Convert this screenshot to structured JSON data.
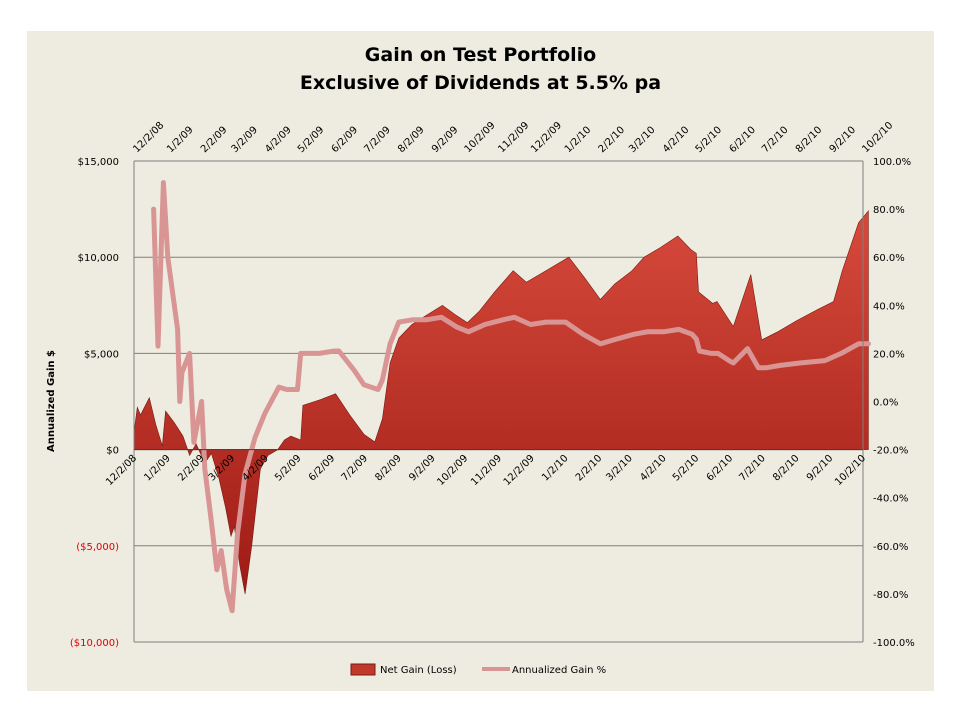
{
  "chart_data": {
    "type": "area+line",
    "title_line1": "Gain on Test Portfolio",
    "title_line2": "Exclusive of Dividends at 5.5% pa",
    "ylabel_left": "Annualized Gain $",
    "ylim_left": [
      -10000,
      15000
    ],
    "ylim_right": [
      -100,
      100
    ],
    "left_ticks": [
      {
        "value": 15000,
        "label": "$15,000",
        "negative": false
      },
      {
        "value": 10000,
        "label": "$10,000",
        "negative": false
      },
      {
        "value": 5000,
        "label": "$5,000",
        "negative": false
      },
      {
        "value": 0,
        "label": "$0",
        "negative": false
      },
      {
        "value": -5000,
        "label": "($5,000)",
        "negative": true
      },
      {
        "value": -10000,
        "label": "($10,000)",
        "negative": true
      }
    ],
    "right_ticks": [
      {
        "value": 100,
        "label": "100.0%"
      },
      {
        "value": 80,
        "label": "80.0%"
      },
      {
        "value": 60,
        "label": "60.0%"
      },
      {
        "value": 40,
        "label": "40.0%"
      },
      {
        "value": 20,
        "label": "20.0%"
      },
      {
        "value": 0,
        "label": "0.0%"
      },
      {
        "value": -20,
        "label": "-20.0%"
      },
      {
        "value": -40,
        "label": "-40.0%"
      },
      {
        "value": -60,
        "label": "-60.0%"
      },
      {
        "value": -80,
        "label": "-80.0%"
      },
      {
        "value": -100,
        "label": "-100.0%"
      }
    ],
    "x_ticks": [
      "12/2/08",
      "1/2/09",
      "2/2/09",
      "3/2/09",
      "4/2/09",
      "5/2/09",
      "6/2/09",
      "7/2/09",
      "8/2/09",
      "9/2/09",
      "10/2/09",
      "11/2/09",
      "12/2/09",
      "1/2/10",
      "2/2/10",
      "3/2/10",
      "4/2/10",
      "5/2/10",
      "6/2/10",
      "7/2/10",
      "8/2/10",
      "9/2/10",
      "10/2/10"
    ],
    "x_range": [
      "12/2/08",
      "10/2/10"
    ],
    "series": [
      {
        "name": "Net Gain (Loss)",
        "type": "area",
        "axis": "left",
        "color": "#c0392b",
        "points": [
          [
            "12/2/08",
            900
          ],
          [
            "12/5/08",
            2200
          ],
          [
            "12/8/08",
            1800
          ],
          [
            "12/16/08",
            2700
          ],
          [
            "12/22/08",
            1300
          ],
          [
            "12/28/08",
            200
          ],
          [
            "12/31/08",
            2000
          ],
          [
            "1/8/09",
            1400
          ],
          [
            "1/16/09",
            700
          ],
          [
            "1/22/09",
            -300
          ],
          [
            "1/28/09",
            300
          ],
          [
            "2/5/09",
            -700
          ],
          [
            "2/11/09",
            -200
          ],
          [
            "2/18/09",
            -1500
          ],
          [
            "2/24/09",
            -3000
          ],
          [
            "3/1/09",
            -4500
          ],
          [
            "3/4/09",
            -4000
          ],
          [
            "3/9/09",
            -6000
          ],
          [
            "3/14/09",
            -7500
          ],
          [
            "3/20/09",
            -5000
          ],
          [
            "3/28/09",
            -1000
          ],
          [
            "4/4/09",
            -300
          ],
          [
            "4/13/09",
            0
          ],
          [
            "4/19/09",
            500
          ],
          [
            "4/25/09",
            700
          ],
          [
            "5/4/09",
            500
          ],
          [
            "5/6/09",
            2300
          ],
          [
            "5/22/09",
            2600
          ],
          [
            "6/5/09",
            2900
          ],
          [
            "6/18/09",
            1800
          ],
          [
            "7/1/09",
            800
          ],
          [
            "7/11/09",
            400
          ],
          [
            "7/18/09",
            1600
          ],
          [
            "7/25/09",
            4500
          ],
          [
            "8/2/09",
            5800
          ],
          [
            "8/14/09",
            6500
          ],
          [
            "8/28/09",
            7000
          ],
          [
            "9/11/09",
            7500
          ],
          [
            "9/23/09",
            7000
          ],
          [
            "10/4/09",
            6600
          ],
          [
            "10/15/09",
            7200
          ],
          [
            "10/29/09",
            8200
          ],
          [
            "11/15/09",
            9300
          ],
          [
            "11/27/09",
            8700
          ],
          [
            "12/15/09",
            9300
          ],
          [
            "1/5/10",
            10000
          ],
          [
            "1/20/10",
            8900
          ],
          [
            "2/3/10",
            7800
          ],
          [
            "2/16/10",
            8600
          ],
          [
            "3/4/10",
            9300
          ],
          [
            "3/15/10",
            10000
          ],
          [
            "3/30/10",
            10500
          ],
          [
            "4/15/10",
            11100
          ],
          [
            "4/27/10",
            10400
          ],
          [
            "5/2/10",
            10200
          ],
          [
            "5/4/10",
            8200
          ],
          [
            "5/17/10",
            7600
          ],
          [
            "5/21/10",
            7700
          ],
          [
            "6/5/10",
            6400
          ],
          [
            "6/21/10",
            9100
          ],
          [
            "7/1/10",
            5700
          ],
          [
            "7/15/10",
            6100
          ],
          [
            "8/2/10",
            6700
          ],
          [
            "8/22/10",
            7300
          ],
          [
            "9/5/10",
            7700
          ],
          [
            "9/13/10",
            9300
          ],
          [
            "9/28/10",
            11800
          ],
          [
            "10/7/10",
            12400
          ]
        ]
      },
      {
        "name": "Annualized Gain %",
        "type": "line",
        "axis": "right",
        "color": "#d99594",
        "points": [
          [
            "12/20/08",
            80
          ],
          [
            "12/24/08",
            23
          ],
          [
            "12/29/08",
            91
          ],
          [
            "1/2/09",
            60
          ],
          [
            "1/11/09",
            30
          ],
          [
            "1/13/09",
            0
          ],
          [
            "1/15/09",
            12
          ],
          [
            "1/22/09",
            20
          ],
          [
            "1/26/09",
            -17
          ],
          [
            "2/2/09",
            0
          ],
          [
            "2/5/09",
            -28
          ],
          [
            "2/11/09",
            -50
          ],
          [
            "2/16/09",
            -70
          ],
          [
            "2/20/09",
            -62
          ],
          [
            "2/25/09",
            -78
          ],
          [
            "3/2/09",
            -87
          ],
          [
            "3/7/09",
            -55
          ],
          [
            "3/14/09",
            -30
          ],
          [
            "3/23/09",
            -15
          ],
          [
            "4/1/09",
            -5
          ],
          [
            "4/14/09",
            6
          ],
          [
            "4/21/09",
            5
          ],
          [
            "5/1/09",
            5
          ],
          [
            "5/4/09",
            20
          ],
          [
            "5/21/09",
            20
          ],
          [
            "6/4/09",
            21
          ],
          [
            "6/8/09",
            21
          ],
          [
            "6/22/09",
            13
          ],
          [
            "7/1/09",
            7
          ],
          [
            "7/14/09",
            5
          ],
          [
            "7/18/09",
            9
          ],
          [
            "7/25/09",
            24
          ],
          [
            "8/2/09",
            33
          ],
          [
            "8/15/09",
            34
          ],
          [
            "8/28/09",
            34
          ],
          [
            "9/10/09",
            35
          ],
          [
            "9/24/09",
            31
          ],
          [
            "10/5/09",
            29
          ],
          [
            "10/20/09",
            32
          ],
          [
            "11/6/09",
            34
          ],
          [
            "11/16/09",
            35
          ],
          [
            "12/1/09",
            32
          ],
          [
            "12/15/09",
            33
          ],
          [
            "1/2/10",
            33
          ],
          [
            "1/18/10",
            28
          ],
          [
            "2/3/10",
            24
          ],
          [
            "2/18/10",
            26
          ],
          [
            "3/6/10",
            28
          ],
          [
            "3/18/10",
            29
          ],
          [
            "4/2/10",
            29
          ],
          [
            "4/16/10",
            30
          ],
          [
            "4/28/10",
            28
          ],
          [
            "5/2/10",
            26
          ],
          [
            "5/5/10",
            21
          ],
          [
            "5/16/10",
            20
          ],
          [
            "5/22/10",
            20
          ],
          [
            "6/1/10",
            17
          ],
          [
            "6/5/10",
            16
          ],
          [
            "6/18/10",
            22
          ],
          [
            "6/28/10",
            14
          ],
          [
            "7/5/10",
            14
          ],
          [
            "7/18/10",
            15
          ],
          [
            "8/5/10",
            16
          ],
          [
            "8/28/10",
            17
          ],
          [
            "9/12/10",
            20
          ],
          [
            "9/28/10",
            24
          ],
          [
            "10/7/10",
            24
          ]
        ]
      }
    ],
    "legend": {
      "position": "bottom-center",
      "items": [
        "Net Gain (Loss)",
        "Annualized Gain %"
      ]
    },
    "grid": {
      "horizontal": true,
      "vertical": false
    }
  }
}
